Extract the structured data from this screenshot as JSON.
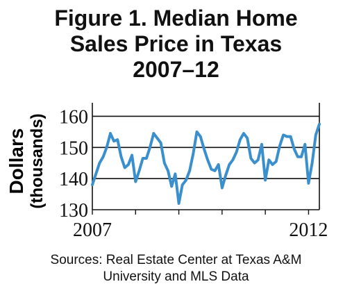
{
  "chart_data": {
    "type": "line",
    "title_lines": [
      "Figure 1. Median Home",
      "Sales Price in Texas",
      "2007–12"
    ],
    "ylabel_lines": [
      "Dollars",
      "(thousands)"
    ],
    "xlabel": "",
    "ylim": [
      130,
      163
    ],
    "yticks": [
      130,
      140,
      150,
      160
    ],
    "xlim": [
      2007.0,
      2012.25
    ],
    "xtick_labels": [
      {
        "x": 2007.0,
        "label": "2007"
      },
      {
        "x": 2012.0,
        "label": "2012"
      }
    ],
    "grid": true,
    "line_color": "#3b8fcc",
    "series": [
      {
        "x": [
          2007.0,
          2007.083,
          2007.167,
          2007.25,
          2007.333,
          2007.417,
          2007.5,
          2007.583,
          2007.667,
          2007.75,
          2007.833,
          2007.917,
          2008.0,
          2008.083,
          2008.167,
          2008.25,
          2008.333,
          2008.417,
          2008.5,
          2008.583,
          2008.667,
          2008.75,
          2008.833,
          2008.917,
          2009.0,
          2009.083,
          2009.167,
          2009.25,
          2009.333,
          2009.417,
          2009.5,
          2009.583,
          2009.667,
          2009.75,
          2009.833,
          2009.917,
          2010.0,
          2010.083,
          2010.167,
          2010.25,
          2010.333,
          2010.417,
          2010.5,
          2010.583,
          2010.667,
          2010.75,
          2010.833,
          2010.917,
          2011.0,
          2011.083,
          2011.167,
          2011.25,
          2011.333,
          2011.417,
          2011.5,
          2011.583,
          2011.667,
          2011.75,
          2011.833,
          2011.917,
          2012.0,
          2012.083,
          2012.167,
          2012.25
        ],
        "values": [
          138,
          141.5,
          145,
          147,
          150,
          154.5,
          152,
          152.5,
          147,
          143.5,
          144.5,
          147.5,
          139,
          142.5,
          146.5,
          146.5,
          150,
          154.5,
          153,
          151.5,
          145,
          142.5,
          137.5,
          141.5,
          132,
          138,
          139.5,
          142.5,
          148,
          155,
          153.5,
          149.5,
          146,
          143,
          142.5,
          144.5,
          137,
          141,
          144.5,
          146,
          148.5,
          152.5,
          154.5,
          153,
          146.5,
          145,
          146,
          151,
          139.5,
          146,
          144.5,
          145.5,
          150.5,
          154,
          153.5,
          153.5,
          149.5,
          147,
          147,
          151,
          138.5,
          145,
          154,
          157.5
        ]
      }
    ],
    "source_lines": [
      "Sources: Real Estate Center at Texas A&M",
      "University and MLS Data"
    ]
  }
}
